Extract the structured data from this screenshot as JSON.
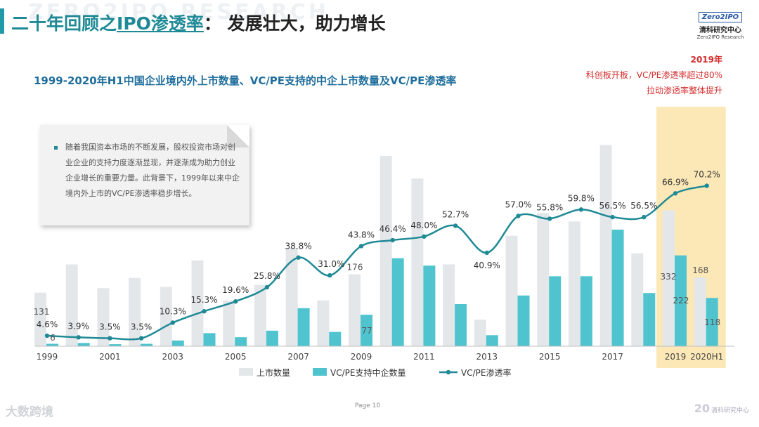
{
  "header": {
    "watermark": "ZERO2IPO RESEARCH",
    "title_a": "二十年回顾之",
    "title_b": "IPO渗透率",
    "title_c": "：  发展壮大，助力增长",
    "logo_mark": "Zero2IPO",
    "logo_cn": "清科研究中心",
    "logo_en": "Zero2IPO Research"
  },
  "annotation": {
    "year": "2019年",
    "line1": "科创板开板，VC/PE渗透率超过80%",
    "line2": "拉动渗透率整体提升"
  },
  "note": {
    "text": "随着我国资本市场的不断发展，股权投资市场对创业企业的支持力度逐渐显现，并逐渐成为助力创业企业增长的重要力量。此背景下，1999年以来中企境内外上市的VC/PE渗透率稳步增长。"
  },
  "footer": {
    "page_label": "Page  10",
    "left_brand": "大数跨境",
    "right_mark": "20",
    "right_brand": "清科研究中心"
  },
  "colors": {
    "bar_total": "#e4e7ea",
    "bar_vc": "#4fc4cf",
    "line": "#1f8a96",
    "highlight": "#fbe8b6"
  },
  "chart_data": {
    "type": "bar+line",
    "title": "1999-2020年H1中国企业境内外上市数量、VC/PE支持的中企上市数量及VC/PE渗透率",
    "categories": [
      "1999",
      "2000",
      "2001",
      "2002",
      "2003",
      "2004",
      "2005",
      "2006",
      "2007",
      "2008",
      "2009",
      "2010",
      "2011",
      "2012",
      "2013",
      "2014",
      "2015",
      "2016",
      "2017",
      "2018",
      "2019",
      "2020H1"
    ],
    "x_tick_labels": [
      "1999",
      "2001",
      "2003",
      "2005",
      "2007",
      "2009",
      "2011",
      "2013",
      "2015",
      "2017",
      "2019",
      "2020H1"
    ],
    "series": [
      {
        "name": "上市数量",
        "type": "bar",
        "values": [
          131,
          200,
          142,
          167,
          145,
          210,
          112,
          150,
          240,
          112,
          176,
          465,
          410,
          200,
          65,
          270,
          326,
          305,
          492,
          227,
          332,
          168
        ]
      },
      {
        "name": "VC/PE支持中企数量",
        "type": "bar",
        "values": [
          6,
          8,
          5,
          6,
          14,
          32,
          22,
          38,
          93,
          35,
          77,
          215,
          197,
          103,
          27,
          124,
          171,
          171,
          285,
          130,
          222,
          118
        ]
      },
      {
        "name": "VC/PE渗透率",
        "type": "line",
        "unit": "%",
        "values": [
          4.6,
          3.9,
          3.5,
          3.5,
          10.3,
          15.3,
          19.6,
          25.8,
          38.8,
          31.0,
          43.8,
          46.4,
          48.0,
          52.7,
          40.9,
          57.0,
          55.8,
          59.8,
          56.5,
          56.5,
          66.9,
          70.2
        ]
      }
    ],
    "bar_labels": [
      {
        "index": 0,
        "series": 0,
        "text": "131"
      },
      {
        "index": 0,
        "series": 1,
        "text": "6"
      },
      {
        "index": 10,
        "series": 0,
        "text": "176"
      },
      {
        "index": 10,
        "series": 1,
        "text": "77"
      },
      {
        "index": 20,
        "series": 0,
        "text": "332"
      },
      {
        "index": 20,
        "series": 1,
        "text": "222"
      },
      {
        "index": 21,
        "series": 0,
        "text": "168"
      },
      {
        "index": 21,
        "series": 1,
        "text": "118"
      }
    ],
    "line_labels": [
      "4.6%",
      "3.9%",
      "3.5%",
      "3.5%",
      "10.3%",
      "15.3%",
      "19.6%",
      "25.8%",
      "38.8%",
      "31.0%",
      "43.8%",
      "46.4%",
      "48.0%",
      "52.7%",
      "40.9%",
      "57.0%",
      "55.8%",
      "59.8%",
      "56.5%",
      "56.5%",
      "66.9%",
      "70.2%"
    ],
    "highlighted_categories": [
      "2019",
      "2020H1"
    ],
    "bar_ylim": [
      0,
      520
    ],
    "line_ylim": [
      0,
      110
    ],
    "legend": [
      "上市数量",
      "VC/PE支持中企数量",
      "VC/PE渗透率"
    ],
    "legend_position": "bottom"
  }
}
